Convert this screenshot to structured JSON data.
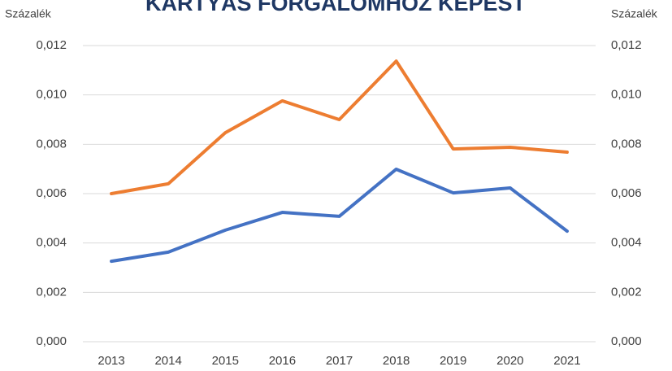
{
  "chart_data": {
    "type": "line",
    "title": "KÁRTYÁS FORGALOMHOZ KÉPEST",
    "y_label": "Százalék",
    "y2_label": "Százalék",
    "categories": [
      "2013",
      "2014",
      "2015",
      "2016",
      "2017",
      "2018",
      "2019",
      "2020",
      "2021"
    ],
    "series": [
      {
        "color": "#ed7d31",
        "values": [
          0.006,
          0.0064,
          0.00847,
          0.00976,
          0.009,
          0.01137,
          0.00781,
          0.00788,
          0.00768
        ]
      },
      {
        "color": "#4472c4",
        "values": [
          0.00326,
          0.00363,
          0.00452,
          0.00524,
          0.00508,
          0.00699,
          0.00603,
          0.00623,
          0.00448
        ]
      }
    ],
    "ylim": [
      0,
      0.012
    ],
    "yticks": [
      {
        "value": 0,
        "label": "0,000"
      },
      {
        "value": 0.002,
        "label": "0,002"
      },
      {
        "value": 0.004,
        "label": "0,004"
      },
      {
        "value": 0.006,
        "label": "0,006"
      },
      {
        "value": 0.008,
        "label": "0,008"
      },
      {
        "value": 0.01,
        "label": "0,010"
      },
      {
        "value": 0.012,
        "label": "0,012"
      }
    ],
    "y2lim": [
      0,
      0.012
    ],
    "y2ticks": [
      {
        "value": 0,
        "label": "0,000"
      },
      {
        "value": 0.002,
        "label": "0,002"
      },
      {
        "value": 0.004,
        "label": "0,004"
      },
      {
        "value": 0.006,
        "label": "0,006"
      },
      {
        "value": 0.008,
        "label": "0,008"
      },
      {
        "value": 0.01,
        "label": "0,010"
      },
      {
        "value": 0.012,
        "label": "0,012"
      }
    ],
    "grid": true
  }
}
